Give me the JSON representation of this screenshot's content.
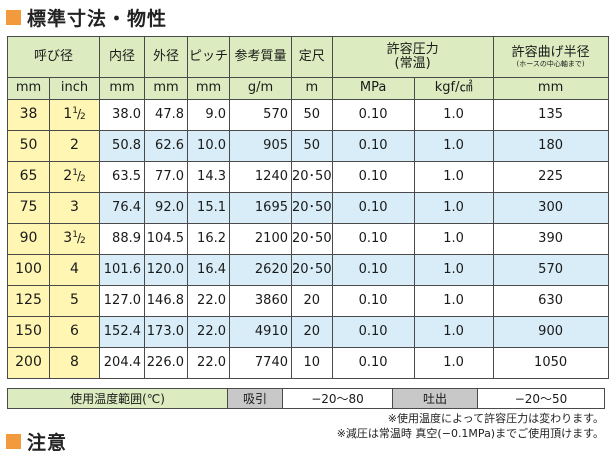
{
  "title_spec": "標準寸法・物性",
  "title_notice": "注意",
  "header": {
    "nominal": "呼び径",
    "inner": "内径",
    "outer": "外径",
    "pitch": "ピッチ",
    "weight": "参考質量",
    "length": "定尺",
    "pressure_line1": "許容圧力",
    "pressure_line2": "(常温)",
    "bend": "許容曲げ半径",
    "bend_note": "(ホースの中心軸まで)"
  },
  "units": {
    "mm": "mm",
    "inch": "inch",
    "inner": "mm",
    "outer": "mm",
    "pitch": "mm",
    "weight": "g/m",
    "length": "m",
    "mpa": "MPa",
    "kgf": "kgf/㎠",
    "bend": "mm"
  },
  "rows": [
    {
      "mm": "38",
      "inch_whole": "1",
      "inch_num": "1",
      "inch_den": "2",
      "inner": "38.0",
      "outer": "47.8",
      "pitch": "9.0",
      "weight": "570",
      "length": "50",
      "mpa": "0.10",
      "kgf": "1.0",
      "bend": "135"
    },
    {
      "mm": "50",
      "inch_whole": "2",
      "inner": "50.8",
      "outer": "62.6",
      "pitch": "10.0",
      "weight": "905",
      "length": "50",
      "mpa": "0.10",
      "kgf": "1.0",
      "bend": "180"
    },
    {
      "mm": "65",
      "inch_whole": "2",
      "inch_num": "1",
      "inch_den": "2",
      "inner": "63.5",
      "outer": "77.0",
      "pitch": "14.3",
      "weight": "1240",
      "length": "20･50",
      "mpa": "0.10",
      "kgf": "1.0",
      "bend": "225"
    },
    {
      "mm": "75",
      "inch_whole": "3",
      "inner": "76.4",
      "outer": "92.0",
      "pitch": "15.1",
      "weight": "1695",
      "length": "20･50",
      "mpa": "0.10",
      "kgf": "1.0",
      "bend": "300"
    },
    {
      "mm": "90",
      "inch_whole": "3",
      "inch_num": "1",
      "inch_den": "2",
      "inner": "88.9",
      "outer": "104.5",
      "pitch": "16.2",
      "weight": "2100",
      "length": "20･50",
      "mpa": "0.10",
      "kgf": "1.0",
      "bend": "390"
    },
    {
      "mm": "100",
      "inch_whole": "4",
      "inner": "101.6",
      "outer": "120.0",
      "pitch": "16.4",
      "weight": "2620",
      "length": "20･50",
      "mpa": "0.10",
      "kgf": "1.0",
      "bend": "570"
    },
    {
      "mm": "125",
      "inch_whole": "5",
      "inner": "127.0",
      "outer": "146.8",
      "pitch": "22.0",
      "weight": "3860",
      "length": "20",
      "mpa": "0.10",
      "kgf": "1.0",
      "bend": "630"
    },
    {
      "mm": "150",
      "inch_whole": "6",
      "inner": "152.4",
      "outer": "173.0",
      "pitch": "22.0",
      "weight": "4910",
      "length": "20",
      "mpa": "0.10",
      "kgf": "1.0",
      "bend": "900"
    },
    {
      "mm": "200",
      "inch_whole": "8",
      "inner": "204.4",
      "outer": "226.0",
      "pitch": "22.0",
      "weight": "7740",
      "length": "10",
      "mpa": "0.10",
      "kgf": "1.0",
      "bend": "1050"
    }
  ],
  "temperature": {
    "label": "使用温度範囲(℃)",
    "suction_label": "吸引",
    "suction_value": "−20〜80",
    "discharge_label": "吐出",
    "discharge_value": "−20〜50"
  },
  "notes": [
    "※使用温度によって許容圧力は変わります。",
    "※減圧は常温時 真空(−0.1MPa)までご使用頂けます。"
  ],
  "colors": {
    "heading_square": "#f29a3c",
    "header_green": "#dcecc0",
    "nominal_yellow": "#fff6b3",
    "row_blue": "#d8edf8"
  }
}
